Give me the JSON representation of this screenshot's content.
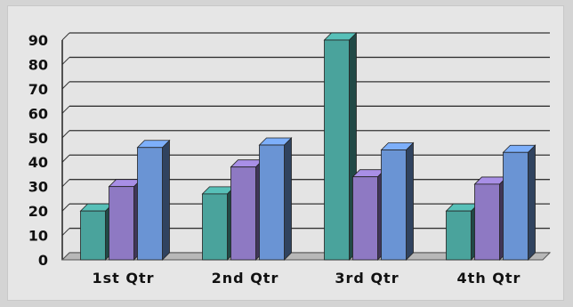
{
  "chart_data": {
    "type": "bar",
    "categories": [
      "1st Qtr",
      "2nd Qtr",
      "3rd Qtr",
      "4th Qtr"
    ],
    "series": [
      {
        "values": [
          20,
          27,
          90,
          20
        ],
        "color": "#4aa39c"
      },
      {
        "values": [
          30,
          38,
          34,
          31
        ],
        "color": "#8e79c3"
      },
      {
        "values": [
          46,
          47,
          45,
          44
        ],
        "color": "#6a94d4"
      }
    ],
    "title": "",
    "xlabel": "",
    "ylabel": "",
    "ylim": [
      0,
      90
    ],
    "yticks": [
      0,
      10,
      20,
      30,
      40,
      50,
      60,
      70,
      80,
      90
    ],
    "grid": true,
    "style": "3d-column",
    "legend": "none"
  }
}
